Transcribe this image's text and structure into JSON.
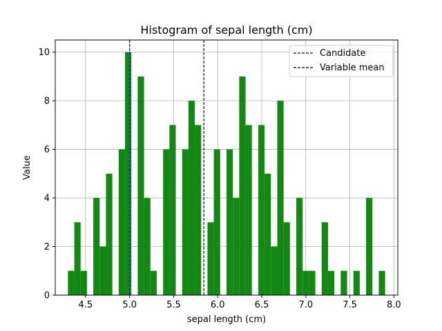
{
  "chart_data": {
    "type": "bar",
    "title": "Histogram of sepal length (cm)",
    "xlabel": "sepal length (cm)",
    "ylabel": "Value",
    "xlim": [
      4.156,
      8.044
    ],
    "ylim": [
      0,
      10.5
    ],
    "xticks": [
      "4.5",
      "5.0",
      "5.5",
      "6.0",
      "6.5",
      "7.0",
      "7.5",
      "8.0"
    ],
    "yticks": [
      "0",
      "2",
      "4",
      "6",
      "8",
      "10"
    ],
    "grid": true,
    "bin_width": 0.072,
    "bins": [
      {
        "x0": 4.3,
        "count": 1
      },
      {
        "x0": 4.372,
        "count": 3
      },
      {
        "x0": 4.444,
        "count": 1
      },
      {
        "x0": 4.588,
        "count": 4
      },
      {
        "x0": 4.66,
        "count": 2
      },
      {
        "x0": 4.732,
        "count": 5
      },
      {
        "x0": 4.876,
        "count": 6
      },
      {
        "x0": 4.948,
        "count": 10
      },
      {
        "x0": 5.092,
        "count": 9
      },
      {
        "x0": 5.164,
        "count": 4
      },
      {
        "x0": 5.236,
        "count": 1
      },
      {
        "x0": 5.38,
        "count": 6
      },
      {
        "x0": 5.452,
        "count": 7
      },
      {
        "x0": 5.596,
        "count": 6
      },
      {
        "x0": 5.668,
        "count": 8
      },
      {
        "x0": 5.74,
        "count": 7
      },
      {
        "x0": 5.884,
        "count": 3
      },
      {
        "x0": 5.956,
        "count": 6
      },
      {
        "x0": 6.1,
        "count": 6
      },
      {
        "x0": 6.172,
        "count": 4
      },
      {
        "x0": 6.244,
        "count": 9
      },
      {
        "x0": 6.316,
        "count": 7
      },
      {
        "x0": 6.46,
        "count": 7
      },
      {
        "x0": 6.532,
        "count": 5
      },
      {
        "x0": 6.604,
        "count": 2
      },
      {
        "x0": 6.676,
        "count": 8
      },
      {
        "x0": 6.748,
        "count": 3
      },
      {
        "x0": 6.892,
        "count": 4
      },
      {
        "x0": 6.964,
        "count": 1
      },
      {
        "x0": 7.036,
        "count": 1
      },
      {
        "x0": 7.18,
        "count": 3
      },
      {
        "x0": 7.252,
        "count": 1
      },
      {
        "x0": 7.396,
        "count": 1
      },
      {
        "x0": 7.54,
        "count": 1
      },
      {
        "x0": 7.684,
        "count": 4
      },
      {
        "x0": 7.828,
        "count": 1
      }
    ],
    "reference_lines": [
      {
        "name": "Candidate",
        "x": 5.0,
        "color": "#0000ff",
        "style": "dashed"
      },
      {
        "name": "Variable mean",
        "x": 5.843,
        "color": "#000000",
        "style": "dashed"
      }
    ],
    "legend_position": "top-right",
    "bar_color": "#138813"
  }
}
